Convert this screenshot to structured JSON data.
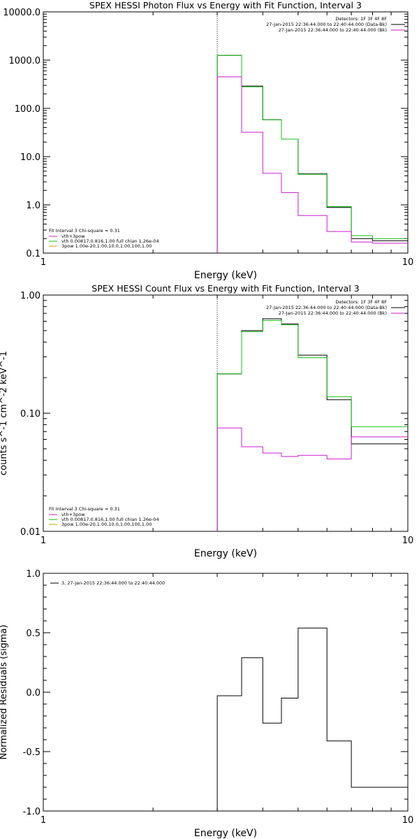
{
  "chart_data": [
    {
      "type": "line",
      "title": "SPEX HESSI Photon Flux vs Energy with Fit Function, Interval 3",
      "xlabel": "Energy (keV)",
      "ylabel": "",
      "x_scale": "log",
      "y_scale": "log",
      "xlim": [
        1,
        10
      ],
      "ylim": [
        0.1,
        10000
      ],
      "x_ticks": [
        {
          "v": 1,
          "label": "1"
        },
        {
          "v": 10,
          "label": "10"
        }
      ],
      "y_ticks": [
        {
          "v": 0.1,
          "label": "0.1"
        },
        {
          "v": 1,
          "label": "1.0"
        },
        {
          "v": 10,
          "label": "10.0"
        },
        {
          "v": 100,
          "label": "100.0"
        },
        {
          "v": 1000,
          "label": "1000.0"
        },
        {
          "v": 10000,
          "label": "10000.0"
        }
      ],
      "vline": 3.0,
      "header": [
        "Detectors: 1F 3F 4F 8F",
        "27-Jan-2015 22:36:44.000 to 22:40:44.000 (Data-Bk)",
        "27-Jan-2015 22:36:44.000 to 22:40:44.000 (Bk)"
      ],
      "legend_title": "Fit Interval 3   Chi-square = 0.31",
      "legend": [
        {
          "label": "vth+3pow",
          "color": "#d01ad0"
        },
        {
          "label": "vth 0.00817,0.816,1.00  full chian 1.26e-04",
          "color": "#10c010"
        },
        {
          "label": "3pow 1.00e-20,1.00,10.0,1.00,100,1.00",
          "color": "#d0a000"
        }
      ],
      "edges": [
        3.0,
        3.5,
        4.0,
        4.5,
        5.0,
        6.0,
        7.0,
        8.0,
        9.0,
        10.0
      ],
      "series": [
        {
          "name": "Data-Bk",
          "color": "#000000",
          "values": [
            1250,
            290,
            58,
            23,
            4.4,
            0.88,
            0.2,
            0.18,
            0.18
          ]
        },
        {
          "name": "",
          "color": "#10c010",
          "values": [
            1250,
            280,
            58,
            23,
            4.3,
            0.92,
            0.23,
            0.2,
            0.2
          ]
        },
        {
          "name": "Bk",
          "color": "#d01ad0",
          "values": [
            450,
            32,
            4.5,
            1.8,
            0.6,
            0.28,
            0.17,
            0.16,
            0.16
          ]
        }
      ]
    },
    {
      "type": "line",
      "title": "SPEX HESSI Count Flux vs Energy with Fit Function, Interval 3",
      "xlabel": "Energy (keV)",
      "ylabel": "counts s^-1 cm^-2 keV^-1",
      "x_scale": "log",
      "y_scale": "log",
      "xlim": [
        1,
        10
      ],
      "ylim": [
        0.01,
        1.0
      ],
      "x_ticks": [
        {
          "v": 1,
          "label": "1"
        },
        {
          "v": 10,
          "label": "10"
        }
      ],
      "y_ticks": [
        {
          "v": 0.01,
          "label": "0.01"
        },
        {
          "v": 0.1,
          "label": "0.10"
        },
        {
          "v": 1.0,
          "label": "1.00"
        }
      ],
      "vline": 3.0,
      "header": [
        "Detectors: 1F 3F 4F 8F",
        "27-Jan-2015 22:36:44.000 to 22:40:44.000 (Data-Bk)",
        "27-Jan-2015 22:36:44.000 to 22:40:44.000 (Bk)"
      ],
      "legend_title": "Fit Interval 3   Chi-square = 0.31",
      "legend": [
        {
          "label": "vth+3pow",
          "color": "#d01ad0"
        },
        {
          "label": "vth 0.00817,0.816,1.00  full chian 1.26e-04",
          "color": "#10c010"
        },
        {
          "label": "3pow 1.00e-20,1.00,10.0,1.00,100,1.00",
          "color": "#d0a000"
        }
      ],
      "edges": [
        3.0,
        3.5,
        4.0,
        4.5,
        5.0,
        6.0,
        7.0,
        8.0,
        9.0,
        10.0
      ],
      "series": [
        {
          "name": "Data-Bk",
          "color": "#000000",
          "values": [
            0.215,
            0.5,
            0.63,
            0.57,
            0.31,
            0.13,
            0.055,
            0.055,
            0.055
          ]
        },
        {
          "name": "",
          "color": "#10c010",
          "values": [
            0.215,
            0.49,
            0.61,
            0.56,
            0.295,
            0.138,
            0.077,
            0.077,
            0.077
          ]
        },
        {
          "name": "Bk",
          "color": "#d01ad0",
          "values": [
            0.075,
            0.052,
            0.046,
            0.043,
            0.044,
            0.041,
            0.063,
            0.063,
            0.063
          ]
        }
      ]
    },
    {
      "type": "line",
      "title": "",
      "xlabel": "Energy (keV)",
      "ylabel": "Normalized Residuals (sigma)",
      "x_scale": "log",
      "y_scale": "linear",
      "xlim": [
        1,
        10
      ],
      "ylim": [
        -1.0,
        1.0
      ],
      "x_ticks": [
        {
          "v": 1,
          "label": "1"
        },
        {
          "v": 10,
          "label": "10"
        }
      ],
      "y_ticks": [
        {
          "v": -1.0,
          "label": "-1.0"
        },
        {
          "v": -0.5,
          "label": "-0.5"
        },
        {
          "v": 0.0,
          "label": "0.0"
        },
        {
          "v": 0.5,
          "label": "0.5"
        },
        {
          "v": 1.0,
          "label": "1.0"
        }
      ],
      "vline": null,
      "header": [],
      "legend_title": "",
      "legend": [
        {
          "label": "3, 27-Jan-2015 22:36:44.000 to 22:40:44.000",
          "color": "#000000"
        }
      ],
      "edges": [
        3.0,
        3.5,
        4.0,
        4.5,
        5.0,
        6.0,
        7.0,
        8.0,
        9.0,
        10.0
      ],
      "series": [
        {
          "name": "3, 27-Jan-2015 22:36:44.000 to 22:40:44.000",
          "color": "#000000",
          "values": [
            -0.03,
            0.29,
            -0.26,
            -0.05,
            0.54,
            -0.41,
            -0.8,
            -0.8,
            -0.8
          ]
        }
      ]
    }
  ]
}
